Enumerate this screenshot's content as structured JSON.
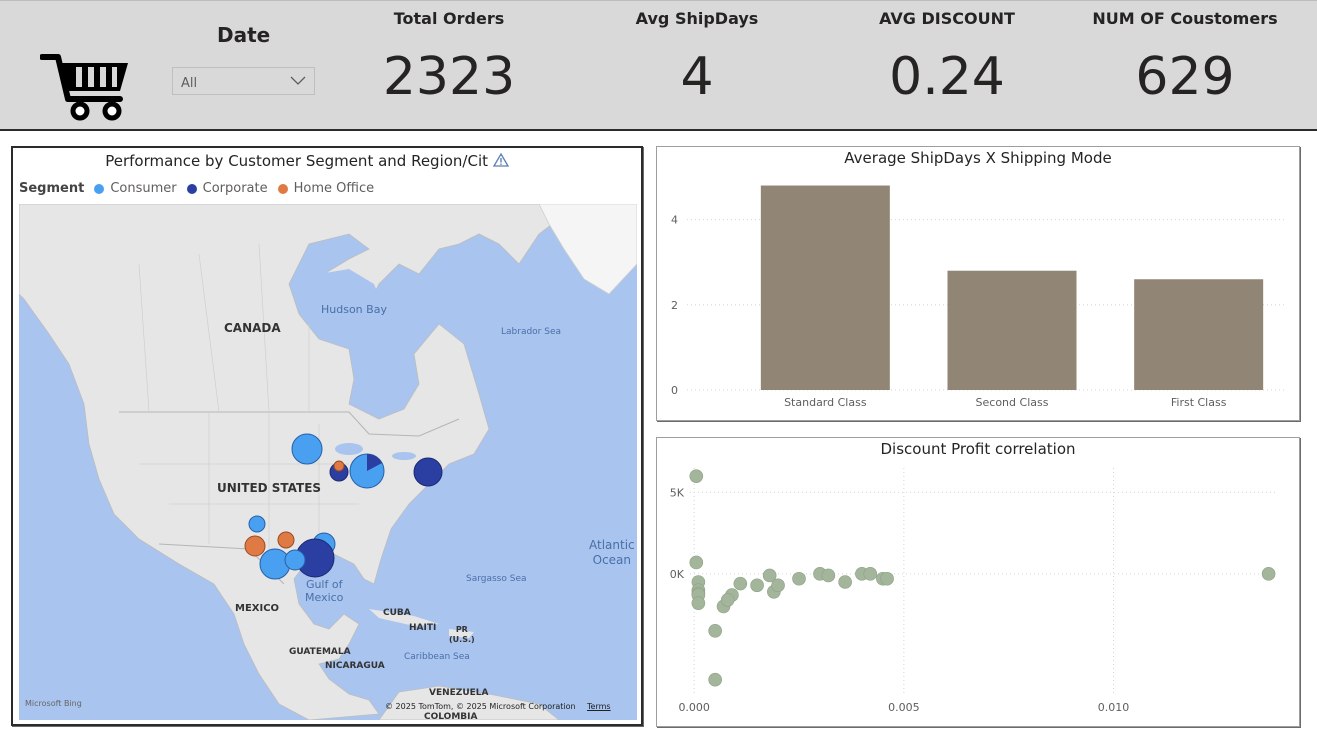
{
  "header": {
    "date_label": "Date",
    "date_value": "All",
    "kpis": [
      {
        "title": "Total Orders",
        "value": "2323"
      },
      {
        "title": "Avg ShipDays",
        "value": "4"
      },
      {
        "title": "AVG DISCOUNT",
        "value": "0.24"
      },
      {
        "title": "NUM OF Coustomers",
        "value": "629"
      }
    ]
  },
  "map": {
    "title": "Performance by Customer Segment and Region/Cit",
    "legend_title": "Segment",
    "segments": [
      {
        "name": "Consumer",
        "color": "#4aa0f0"
      },
      {
        "name": "Corporate",
        "color": "#2b3fa3"
      },
      {
        "name": "Home Office",
        "color": "#e07a45"
      }
    ],
    "labels": {
      "canada": "CANADA",
      "united_states": "UNITED STATES",
      "mexico": "MEXICO",
      "hudson_bay": "Hudson Bay",
      "labrador_sea": "Labrador Sea",
      "gulf_of_mexico": "Gulf of\nMexico",
      "atlantic_ocean": "Atlantic\nOcean",
      "sargasso_sea": "Sargasso Sea",
      "cuba": "CUBA",
      "haiti": "HAITI",
      "pr": "PR\n(U.S.)",
      "guatemala": "GUATEMALA",
      "nicaragua": "NICARAGUA",
      "caribbean_sea": "Caribbean Sea",
      "venezuela": "VENEZUELA",
      "colombia": "COLOMBIA",
      "bing": "Microsoft Bing",
      "copyright": "© 2025 TomTom, © 2025 Microsoft Corporation",
      "terms": "Terms"
    }
  },
  "bar_chart": {
    "chart_data": {
      "type": "bar",
      "title": "Average ShipDays X Shipping Mode",
      "categories": [
        "Standard Class",
        "Second Class",
        "First Class"
      ],
      "values": [
        4.8,
        2.8,
        2.6
      ],
      "ylim": [
        0,
        5
      ],
      "yticks": [
        0,
        2,
        4
      ],
      "color": "#918676",
      "grid": true
    }
  },
  "scatter_chart": {
    "chart_data": {
      "type": "scatter",
      "title": "Discount Profit correlation",
      "xticks": [
        "0.000",
        "0.005",
        "0.010"
      ],
      "yticks": [
        "5K",
        "0K"
      ],
      "xlim": [
        -0.0001,
        0.0139
      ],
      "ylim": [
        -7500,
        6500
      ],
      "color": "#a3b59a",
      "points": [
        [
          5e-05,
          6000
        ],
        [
          5e-05,
          700
        ],
        [
          0.0001,
          -500
        ],
        [
          0.0001,
          -1000
        ],
        [
          0.0001,
          -1200
        ],
        [
          0.0001,
          -1300
        ],
        [
          0.0001,
          -1800
        ],
        [
          0.0005,
          -3500
        ],
        [
          0.0007,
          -2000
        ],
        [
          0.0009,
          -1300
        ],
        [
          0.0011,
          -600
        ],
        [
          0.0015,
          -700
        ],
        [
          0.0018,
          -100
        ],
        [
          0.0019,
          -1100
        ],
        [
          0.002,
          -700
        ],
        [
          0.0025,
          -300
        ],
        [
          0.003,
          0
        ],
        [
          0.0032,
          -100
        ],
        [
          0.0036,
          -500
        ],
        [
          0.004,
          0
        ],
        [
          0.0042,
          0
        ],
        [
          0.0045,
          -300
        ],
        [
          0.0046,
          -300
        ],
        [
          0.0137,
          0
        ],
        [
          0.0008,
          -1600
        ],
        [
          0.0005,
          -6500
        ]
      ]
    }
  }
}
